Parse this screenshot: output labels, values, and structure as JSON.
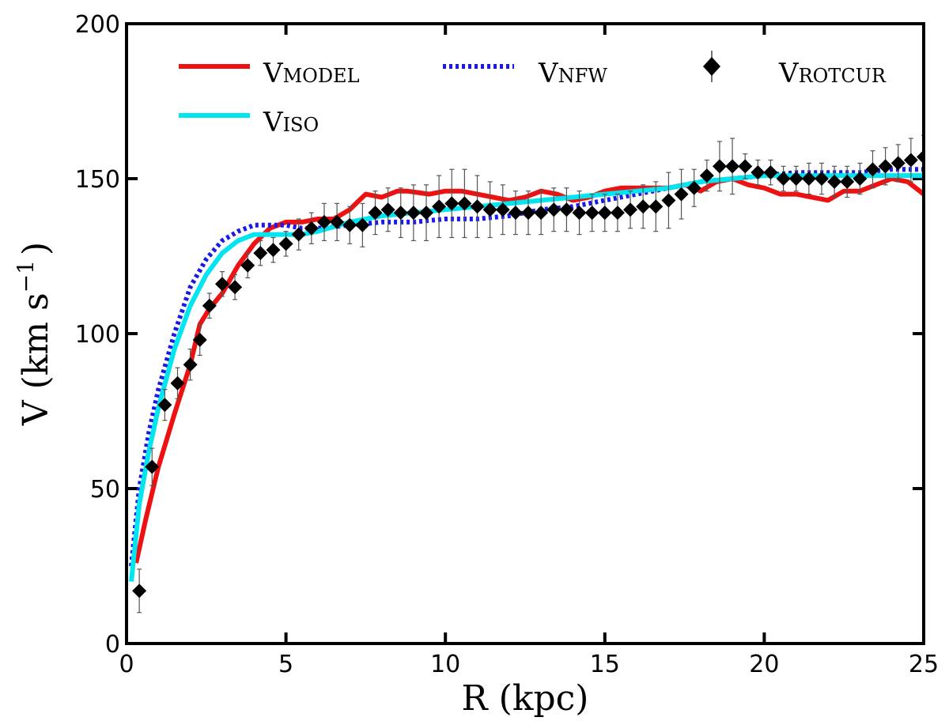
{
  "chart_data": {
    "type": "line",
    "xlabel": "R (kpc)",
    "ylabel": "V (km s",
    "ylabel_sup": "−1",
    "ylabel_close": ")",
    "xlim": [
      0,
      25
    ],
    "ylim": [
      0,
      200
    ],
    "xticks": [
      "0",
      "5",
      "10",
      "15",
      "20",
      "25"
    ],
    "yticks": [
      "0",
      "50",
      "100",
      "150",
      "200"
    ],
    "grid": false,
    "legend_position": "top",
    "series": [
      {
        "name": "V",
        "name_sub": "MODEL",
        "style": "solid",
        "color": "#ee1111",
        "x": [
          0.3,
          0.6,
          1.0,
          1.5,
          2.0,
          2.3,
          2.6,
          3.0,
          3.5,
          4.0,
          4.5,
          5.0,
          5.5,
          6.0,
          6.5,
          7.0,
          7.3,
          7.5,
          8.0,
          8.5,
          8.8,
          9.5,
          10.0,
          10.5,
          11.0,
          11.5,
          12.0,
          12.5,
          13.0,
          13.5,
          14.0,
          14.5,
          15.0,
          15.5,
          16.0,
          16.5,
          17.0,
          17.5,
          17.8,
          18.0,
          18.5,
          19.0,
          19.5,
          20.0,
          20.5,
          21.0,
          21.5,
          22.0,
          22.5,
          23.0,
          23.5,
          24.0,
          24.5,
          25.0
        ],
        "y": [
          26,
          40,
          57,
          74,
          90,
          103,
          108,
          113,
          122,
          129,
          134,
          136,
          136,
          137,
          137,
          140,
          143,
          145,
          144,
          146,
          146,
          145,
          146,
          146,
          145,
          144,
          143,
          144,
          146,
          145,
          143,
          144,
          146,
          147,
          147,
          147,
          147,
          148,
          147,
          146,
          149,
          150,
          148,
          147,
          145,
          145,
          144,
          143,
          146,
          146,
          148,
          150,
          149,
          145
        ]
      },
      {
        "name": "V",
        "name_sub": "ISO",
        "style": "solid",
        "color": "#00e5f0",
        "x": [
          0.15,
          0.4,
          0.7,
          1.0,
          1.5,
          2.0,
          2.5,
          3.0,
          3.5,
          4.0,
          4.5,
          5.0,
          5.5,
          6.0,
          7.0,
          8.0,
          9.0,
          10.0,
          11.0,
          12.0,
          13.0,
          14.0,
          15.0,
          16.0,
          17.0,
          18.0,
          19.0,
          20.0,
          21.0,
          22.0,
          23.0,
          24.0,
          25.0
        ],
        "y": [
          20,
          45,
          62,
          76,
          95,
          109,
          119,
          126,
          130,
          132,
          132,
          132,
          132,
          133,
          136,
          138,
          139,
          140,
          141,
          142,
          143,
          144,
          145,
          146,
          147,
          149,
          150,
          151,
          151,
          151,
          151,
          151,
          151
        ]
      },
      {
        "name": "V",
        "name_sub": "NFW",
        "style": "dotted",
        "color": "#1a1ae6",
        "x": [
          0.15,
          0.4,
          0.7,
          1.0,
          1.5,
          2.0,
          2.5,
          3.0,
          3.5,
          4.0,
          4.5,
          5.0,
          5.5,
          6.0,
          7.0,
          8.0,
          9.0,
          10.0,
          11.0,
          12.0,
          13.0,
          14.0,
          15.0,
          16.0,
          17.0,
          18.0,
          19.0,
          20.0,
          21.0,
          22.0,
          23.0,
          24.0,
          25.0
        ],
        "y": [
          25,
          50,
          68,
          82,
          100,
          115,
          124,
          130,
          133,
          135,
          135,
          135,
          134,
          134,
          135,
          136,
          136,
          137,
          137,
          138,
          140,
          141,
          143,
          145,
          147,
          149,
          150,
          151,
          152,
          152,
          152,
          153,
          153
        ]
      },
      {
        "name": "V",
        "name_sub": "ROTCUR",
        "style": "markers",
        "color": "#000000",
        "x": [
          0.4,
          0.8,
          1.2,
          1.6,
          2.0,
          2.3,
          2.6,
          3.0,
          3.4,
          3.8,
          4.2,
          4.6,
          5.0,
          5.4,
          5.8,
          6.2,
          6.6,
          7.0,
          7.4,
          7.8,
          8.2,
          8.6,
          9.0,
          9.4,
          9.8,
          10.2,
          10.6,
          11.0,
          11.4,
          11.8,
          12.2,
          12.6,
          13.0,
          13.4,
          13.8,
          14.2,
          14.6,
          15.0,
          15.4,
          15.8,
          16.2,
          16.6,
          17.0,
          17.4,
          17.8,
          18.2,
          18.6,
          19.0,
          19.4,
          19.8,
          20.2,
          20.6,
          21.0,
          21.4,
          21.8,
          22.2,
          22.6,
          23.0,
          23.4,
          23.8,
          24.2,
          24.6,
          25.0
        ],
        "y": [
          17,
          57,
          77,
          84,
          90,
          98,
          109,
          116,
          115,
          122,
          126,
          127,
          129,
          132,
          134,
          136,
          136,
          135,
          135,
          139,
          140,
          139,
          139,
          139,
          141,
          142,
          142,
          141,
          140,
          140,
          139,
          139,
          139,
          140,
          140,
          139,
          139,
          139,
          139,
          140,
          141,
          141,
          143,
          145,
          147,
          151,
          154,
          154,
          154,
          152,
          152,
          150,
          150,
          150,
          150,
          149,
          149,
          150,
          153,
          154,
          155,
          156,
          157
        ],
        "err": [
          7,
          6,
          5,
          5,
          5,
          5,
          4,
          4,
          4,
          4,
          4,
          4,
          4,
          5,
          5,
          6,
          6,
          6,
          7,
          7,
          7,
          8,
          9,
          9,
          10,
          11,
          11,
          10,
          9,
          8,
          7,
          7,
          7,
          7,
          7,
          7,
          6,
          6,
          6,
          6,
          7,
          8,
          9,
          8,
          6,
          5,
          8,
          9,
          4,
          4,
          4,
          4,
          4,
          5,
          5,
          5,
          5,
          5,
          6,
          6,
          6,
          7,
          7
        ]
      }
    ]
  }
}
